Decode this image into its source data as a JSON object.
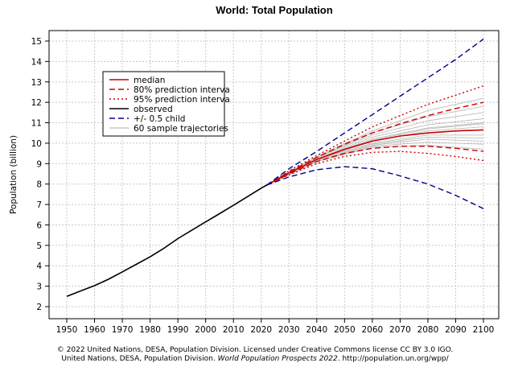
{
  "chart_data": {
    "type": "line",
    "title": "World: Total Population",
    "xlabel": "",
    "ylabel": "Population (billion)",
    "xlim": [
      1950,
      2100
    ],
    "ylim": [
      2,
      15
    ],
    "x_ticks": [
      1950,
      1960,
      1970,
      1980,
      1990,
      2000,
      2010,
      2020,
      2030,
      2040,
      2050,
      2060,
      2070,
      2080,
      2090,
      2100
    ],
    "y_ticks": [
      2,
      3,
      4,
      5,
      6,
      7,
      8,
      9,
      10,
      11,
      12,
      13,
      14,
      15
    ],
    "grid": true,
    "legend_position": "top-left",
    "legend": [
      {
        "label": "median",
        "color": "#cc0000",
        "style": "solid"
      },
      {
        "label": "80% prediction interva",
        "color": "#cc0000",
        "style": "dashed"
      },
      {
        "label": "95% prediction interva",
        "color": "#cc0000",
        "style": "dotted"
      },
      {
        "label": "observed",
        "color": "#000000",
        "style": "solid"
      },
      {
        "label": "+/- 0.5 child",
        "color": "#00008b",
        "style": "dashed"
      },
      {
        "label": "60 sample trajectories",
        "color": "#bdbdbd",
        "style": "solid"
      }
    ],
    "series": [
      {
        "name": "observed",
        "color": "#000000",
        "style": "solid",
        "x": [
          1950,
          1955,
          1960,
          1965,
          1970,
          1975,
          1980,
          1985,
          1990,
          1995,
          2000,
          2005,
          2010,
          2015,
          2020,
          2022
        ],
        "y": [
          2.5,
          2.77,
          3.03,
          3.34,
          3.7,
          4.07,
          4.44,
          4.86,
          5.33,
          5.74,
          6.15,
          6.55,
          6.96,
          7.38,
          7.8,
          7.95
        ]
      },
      {
        "name": "median",
        "color": "#cc0000",
        "style": "solid",
        "x": [
          2022,
          2030,
          2040,
          2050,
          2060,
          2070,
          2080,
          2090,
          2100
        ],
        "y": [
          7.95,
          8.55,
          9.2,
          9.7,
          10.1,
          10.35,
          10.5,
          10.6,
          10.65
        ]
      },
      {
        "name": "80% prediction interval upper",
        "color": "#cc0000",
        "style": "dashed",
        "x": [
          2022,
          2030,
          2040,
          2050,
          2060,
          2070,
          2080,
          2090,
          2100
        ],
        "y": [
          7.95,
          8.6,
          9.3,
          9.95,
          10.5,
          10.95,
          11.35,
          11.7,
          12.0
        ]
      },
      {
        "name": "80% prediction interval lower",
        "color": "#cc0000",
        "style": "dashed",
        "x": [
          2022,
          2030,
          2040,
          2050,
          2060,
          2070,
          2080,
          2090,
          2100
        ],
        "y": [
          7.95,
          8.5,
          9.1,
          9.5,
          9.75,
          9.85,
          9.85,
          9.75,
          9.6
        ]
      },
      {
        "name": "95% prediction interval upper",
        "color": "#cc0000",
        "style": "dotted",
        "x": [
          2022,
          2030,
          2040,
          2050,
          2060,
          2070,
          2080,
          2090,
          2100
        ],
        "y": [
          7.95,
          8.65,
          9.4,
          10.1,
          10.8,
          11.35,
          11.9,
          12.35,
          12.8
        ]
      },
      {
        "name": "95% prediction interval lower",
        "color": "#cc0000",
        "style": "dotted",
        "x": [
          2022,
          2030,
          2040,
          2050,
          2060,
          2070,
          2080,
          2090,
          2100
        ],
        "y": [
          7.95,
          8.45,
          9.0,
          9.35,
          9.55,
          9.6,
          9.5,
          9.35,
          9.15
        ]
      },
      {
        "name": "+0.5 child",
        "color": "#00008b",
        "style": "dashed",
        "x": [
          2022,
          2030,
          2040,
          2050,
          2060,
          2070,
          2080,
          2090,
          2100
        ],
        "y": [
          7.95,
          8.75,
          9.6,
          10.5,
          11.4,
          12.3,
          13.2,
          14.1,
          15.1
        ]
      },
      {
        "name": "-0.5 child",
        "color": "#00008b",
        "style": "dashed",
        "x": [
          2022,
          2030,
          2040,
          2050,
          2060,
          2070,
          2080,
          2090,
          2100
        ],
        "y": [
          7.95,
          8.35,
          8.7,
          8.85,
          8.75,
          8.4,
          8.0,
          7.45,
          6.8
        ]
      },
      {
        "name": "sample trajectory",
        "color": "#bdbdbd",
        "style": "solid",
        "x": [
          2022,
          2040,
          2060,
          2080,
          2100
        ],
        "y": [
          7.95,
          9.3,
          10.5,
          11.3,
          11.8
        ]
      },
      {
        "name": "sample trajectory",
        "color": "#bdbdbd",
        "style": "solid",
        "x": [
          2022,
          2040,
          2060,
          2080,
          2100
        ],
        "y": [
          7.95,
          9.15,
          9.9,
          10.2,
          10.1
        ]
      },
      {
        "name": "sample trajectory",
        "color": "#bdbdbd",
        "style": "solid",
        "x": [
          2022,
          2040,
          2060,
          2080,
          2100
        ],
        "y": [
          7.95,
          9.25,
          10.3,
          10.9,
          11.2
        ]
      },
      {
        "name": "sample trajectory",
        "color": "#bdbdbd",
        "style": "solid",
        "x": [
          2022,
          2040,
          2060,
          2080,
          2100
        ],
        "y": [
          7.95,
          9.1,
          9.8,
          9.9,
          9.7
        ]
      },
      {
        "name": "sample trajectory",
        "color": "#bdbdbd",
        "style": "solid",
        "x": [
          2022,
          2040,
          2060,
          2080,
          2100
        ],
        "y": [
          7.95,
          9.2,
          10.1,
          10.6,
          10.8
        ]
      },
      {
        "name": "sample trajectory",
        "color": "#bdbdbd",
        "style": "solid",
        "x": [
          2022,
          2040,
          2060,
          2080,
          2100
        ],
        "y": [
          7.95,
          9.35,
          10.6,
          11.6,
          12.2
        ]
      },
      {
        "name": "sample trajectory",
        "color": "#bdbdbd",
        "style": "solid",
        "x": [
          2022,
          2040,
          2060,
          2080,
          2100
        ],
        "y": [
          7.95,
          9.2,
          10.0,
          10.4,
          10.4
        ]
      },
      {
        "name": "sample trajectory",
        "color": "#bdbdbd",
        "style": "solid",
        "x": [
          2022,
          2040,
          2060,
          2080,
          2100
        ],
        "y": [
          7.95,
          9.25,
          10.2,
          10.75,
          11.0
        ]
      },
      {
        "name": "sample trajectory",
        "color": "#bdbdbd",
        "style": "solid",
        "x": [
          2022,
          2040,
          2060,
          2080,
          2100
        ],
        "y": [
          7.95,
          9.15,
          9.95,
          10.3,
          10.25
        ]
      },
      {
        "name": "sample trajectory",
        "color": "#bdbdbd",
        "style": "solid",
        "x": [
          2022,
          2040,
          2060,
          2080,
          2100
        ],
        "y": [
          7.95,
          9.3,
          10.4,
          11.1,
          11.5
        ]
      },
      {
        "name": "sample trajectory",
        "color": "#bdbdbd",
        "style": "solid",
        "x": [
          2022,
          2040,
          2060,
          2080,
          2100
        ],
        "y": [
          7.95,
          9.1,
          9.85,
          10.05,
          9.95
        ]
      },
      {
        "name": "sample trajectory",
        "color": "#bdbdbd",
        "style": "solid",
        "x": [
          2022,
          2040,
          2060,
          2080,
          2100
        ],
        "y": [
          7.95,
          9.22,
          10.15,
          10.7,
          10.95
        ]
      }
    ]
  },
  "footer": {
    "line1": "© 2022 United Nations, DESA, Population Division. Licensed under Creative Commons license CC BY 3.0 IGO.",
    "line2_prefix": "United Nations, DESA, Population Division. ",
    "line2_italic": "World Population Prospects 2022",
    "line2_suffix": ". http://population.un.org/wpp/"
  }
}
